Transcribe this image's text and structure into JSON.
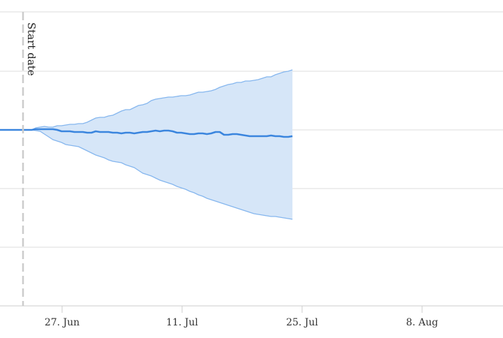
{
  "chart_data": {
    "type": "area",
    "title": "",
    "xlabel": "",
    "ylabel": "",
    "x_tick_labels": [
      "27. Jun",
      "11. Jul",
      "25. Jul",
      "8. Aug"
    ],
    "y_axis_labels_visible": false,
    "grid": "horizontal",
    "annotation": {
      "text": "Start date",
      "style": "dashed vertical line"
    },
    "colors": {
      "line": "#3a85de",
      "band_fill": "#d6e6f8",
      "band_edge": "#85b6ee",
      "grid": "#dedede",
      "start_line": "#cccccc"
    },
    "series": [
      {
        "role": "median",
        "values": [
          0.0,
          0.0,
          0.0,
          0.1,
          0.1,
          0.1,
          0.1,
          0.1,
          0.0,
          -0.2,
          -0.2,
          -0.2,
          -0.3,
          -0.3,
          -0.3,
          -0.4,
          -0.4,
          -0.2,
          -0.3,
          -0.3,
          -0.3,
          -0.4,
          -0.4,
          -0.5,
          -0.4,
          -0.4,
          -0.5,
          -0.4,
          -0.3,
          -0.3,
          -0.2,
          -0.1,
          -0.2,
          -0.1,
          -0.1,
          -0.2,
          -0.4,
          -0.4,
          -0.5,
          -0.6,
          -0.6,
          -0.5,
          -0.5,
          -0.6,
          -0.5,
          -0.3,
          -0.3,
          -0.7,
          -0.7,
          -0.6,
          -0.6,
          -0.7,
          -0.8,
          -0.9,
          -0.9,
          -0.9,
          -0.9,
          -0.9,
          -0.8,
          -0.9,
          -0.9,
          -1.0,
          -1.0,
          -0.9
        ]
      },
      {
        "role": "upper",
        "values": [
          0.0,
          0.0,
          0.0,
          0.3,
          0.4,
          0.5,
          0.4,
          0.4,
          0.6,
          0.6,
          0.7,
          0.8,
          0.8,
          0.9,
          0.9,
          1.1,
          1.4,
          1.7,
          1.8,
          1.8,
          2.0,
          2.1,
          2.4,
          2.7,
          2.9,
          2.9,
          3.2,
          3.5,
          3.6,
          3.8,
          4.2,
          4.4,
          4.5,
          4.6,
          4.7,
          4.7,
          4.8,
          4.9,
          4.9,
          5.0,
          5.2,
          5.4,
          5.4,
          5.5,
          5.6,
          5.8,
          6.1,
          6.3,
          6.5,
          6.6,
          6.8,
          6.8,
          7.0,
          7.0,
          7.1,
          7.2,
          7.4,
          7.6,
          7.6,
          7.9,
          8.1,
          8.3,
          8.4,
          8.6
        ]
      },
      {
        "role": "lower",
        "values": [
          0.0,
          0.0,
          0.0,
          -0.1,
          -0.2,
          -0.6,
          -1.0,
          -1.4,
          -1.6,
          -1.8,
          -2.1,
          -2.2,
          -2.3,
          -2.4,
          -2.7,
          -3.0,
          -3.3,
          -3.6,
          -3.8,
          -4.0,
          -4.3,
          -4.5,
          -4.6,
          -4.7,
          -5.0,
          -5.2,
          -5.4,
          -5.8,
          -6.2,
          -6.4,
          -6.6,
          -6.9,
          -7.2,
          -7.4,
          -7.6,
          -7.8,
          -8.1,
          -8.3,
          -8.5,
          -8.8,
          -9.0,
          -9.3,
          -9.5,
          -9.8,
          -10.0,
          -10.2,
          -10.4,
          -10.6,
          -10.8,
          -11.0,
          -11.2,
          -11.4,
          -11.6,
          -11.8,
          -12.0,
          -12.1,
          -12.2,
          -12.3,
          -12.4,
          -12.4,
          -12.5,
          -12.6,
          -12.7,
          -12.8
        ]
      }
    ]
  }
}
